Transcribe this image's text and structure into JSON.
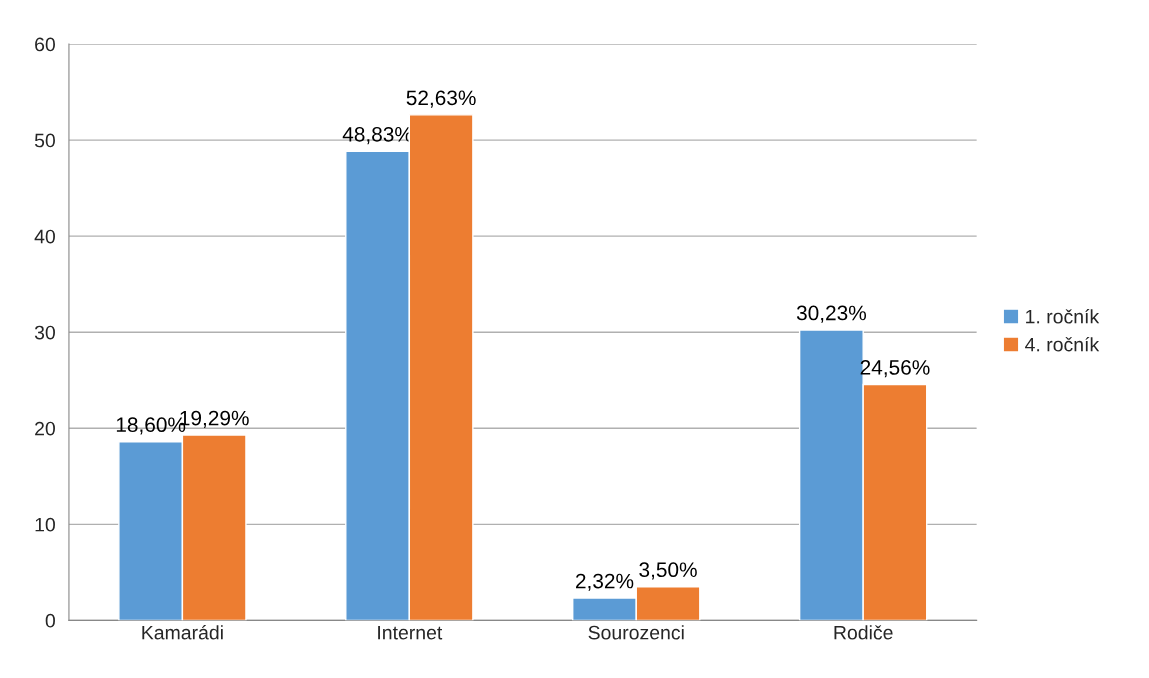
{
  "chart_data": {
    "type": "bar",
    "categories": [
      "Kamarádi",
      "Internet",
      "Sourozenci",
      "Rodiče"
    ],
    "series": [
      {
        "name": "1. ročník",
        "color": "#5b9bd5",
        "values": [
          18.6,
          48.83,
          2.32,
          30.23
        ],
        "value_labels": [
          "18,60%",
          "48,83%",
          "2,32%",
          "30,23%"
        ]
      },
      {
        "name": "4. ročník",
        "color": "#ed7d31",
        "values": [
          19.29,
          52.63,
          3.5,
          24.56
        ],
        "value_labels": [
          "19,29%",
          "52,63%",
          "3,50%",
          "24,56%"
        ]
      }
    ],
    "ylim": [
      0,
      60
    ],
    "yticks": [
      0,
      10,
      20,
      30,
      40,
      50,
      60
    ],
    "grid": "y",
    "legend": "right"
  }
}
